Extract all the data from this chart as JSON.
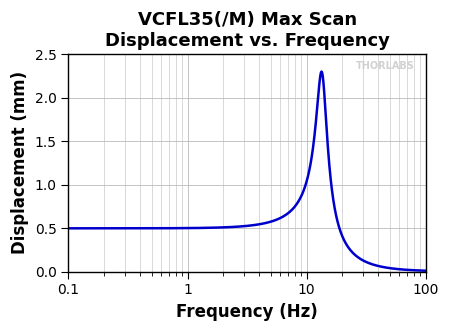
{
  "title": "VCFL35(/M) Max Scan\nDisplacement vs. Frequency",
  "xlabel": "Frequency (Hz)",
  "ylabel": "Displacement (mm)",
  "xlim": [
    0.1,
    100
  ],
  "ylim": [
    0.0,
    2.5
  ],
  "yticks": [
    0.0,
    0.5,
    1.0,
    1.5,
    2.0,
    2.5
  ],
  "line_color": "#0000cc",
  "line_width": 1.8,
  "bg_color": "#ffffff",
  "grid_color": "#bbbbbb",
  "watermark": "THORLABS",
  "watermark_color": "#cccccc",
  "f0": 13.5,
  "Q": 4.6,
  "A0": 0.5,
  "peak_target": 2.3,
  "title_fontsize": 13,
  "axis_label_fontsize": 12,
  "tick_fontsize": 10,
  "figsize": [
    4.5,
    3.32
  ],
  "dpi": 100
}
